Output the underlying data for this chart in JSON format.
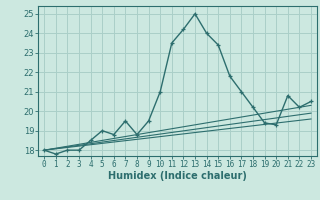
{
  "title": "",
  "xlabel": "Humidex (Indice chaleur)",
  "bg_color": "#cce8e0",
  "line_color": "#2d6e6e",
  "grid_color": "#aacfc8",
  "xlim": [
    -0.5,
    23.5
  ],
  "ylim": [
    17.7,
    25.4
  ],
  "xticks": [
    0,
    1,
    2,
    3,
    4,
    5,
    6,
    7,
    8,
    9,
    10,
    11,
    12,
    13,
    14,
    15,
    16,
    17,
    18,
    19,
    20,
    21,
    22,
    23
  ],
  "yticks": [
    18,
    19,
    20,
    21,
    22,
    23,
    24,
    25
  ],
  "main_x": [
    0,
    1,
    2,
    3,
    4,
    5,
    6,
    7,
    8,
    9,
    10,
    11,
    12,
    13,
    14,
    15,
    16,
    17,
    18,
    19,
    20,
    21,
    22,
    23
  ],
  "main_y": [
    18.0,
    17.8,
    18.0,
    18.0,
    18.5,
    19.0,
    18.8,
    19.5,
    18.8,
    19.5,
    21.0,
    23.5,
    24.2,
    25.0,
    24.0,
    23.4,
    21.8,
    21.0,
    20.2,
    19.4,
    19.3,
    20.8,
    20.2,
    20.5
  ],
  "line1_x": [
    0,
    23
  ],
  "line1_y": [
    18.0,
    19.6
  ],
  "line2_x": [
    0,
    23
  ],
  "line2_y": [
    18.0,
    19.9
  ],
  "line3_x": [
    0,
    23
  ],
  "line3_y": [
    18.0,
    20.3
  ],
  "xlabel_fontsize": 7,
  "tick_fontsize": 5.5
}
